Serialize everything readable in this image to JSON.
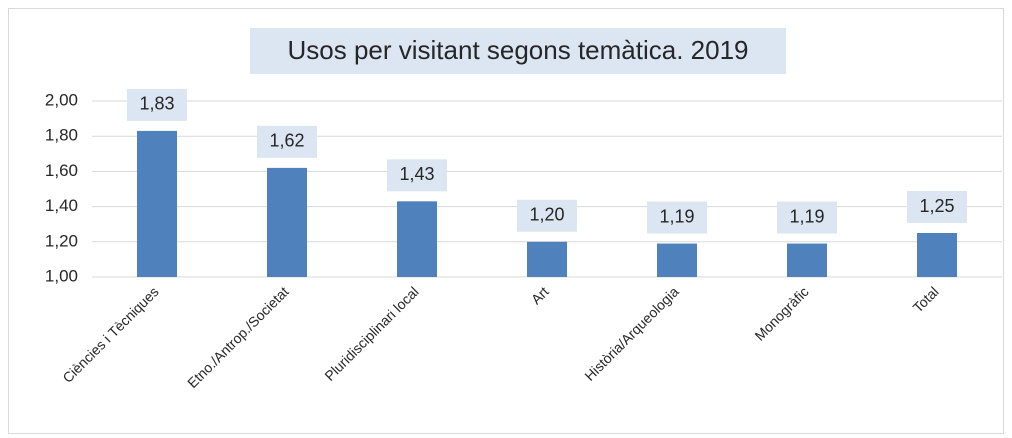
{
  "chart_data": {
    "type": "bar",
    "title": "Usos per visitant segons temàtica. 2019",
    "categories": [
      "Ciències i Tècniques",
      "Etno./Antrop./Societat",
      "Pluridisciplinari local",
      "Art",
      "Història/Arqueologia",
      "Monogràfic",
      "Total"
    ],
    "values": [
      1.83,
      1.62,
      1.43,
      1.2,
      1.19,
      1.19,
      1.25
    ],
    "value_labels": [
      "1,83",
      "1,62",
      "1,43",
      "1,20",
      "1,19",
      "1,19",
      "1,25"
    ],
    "color": "#4f81bd",
    "ylim": [
      1,
      2
    ],
    "yticks": [
      {
        "value": 1,
        "label": "1,00"
      },
      {
        "value": 1.2,
        "label": "1,20"
      },
      {
        "value": 1.4,
        "label": "1,40"
      },
      {
        "value": 1.6,
        "label": "1,60"
      },
      {
        "value": 1.8,
        "label": "1,80"
      },
      {
        "value": 2,
        "label": "2,00"
      }
    ],
    "grid": true
  }
}
